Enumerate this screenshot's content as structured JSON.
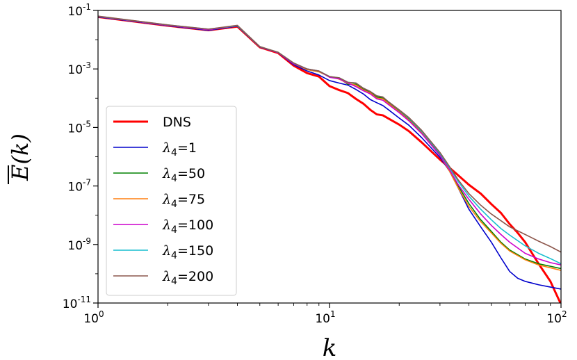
{
  "chart_data": {
    "type": "line",
    "xscale": "log",
    "yscale": "log",
    "xlabel": "k",
    "ylabel": "E(k)",
    "xlim": [
      1,
      100
    ],
    "ylim": [
      1e-11,
      0.1
    ],
    "x_ticks": [
      {
        "base": "10",
        "exp": "0",
        "value": 1
      },
      {
        "base": "10",
        "exp": "1",
        "value": 10
      },
      {
        "base": "10",
        "exp": "2",
        "value": 100
      }
    ],
    "y_ticks": [
      {
        "base": "10",
        "exp": "-1",
        "value": 0.1
      },
      {
        "base": "10",
        "exp": "-3",
        "value": 0.001
      },
      {
        "base": "10",
        "exp": "-5",
        "value": 1e-05
      },
      {
        "base": "10",
        "exp": "-7",
        "value": 1e-07
      },
      {
        "base": "10",
        "exp": "-9",
        "value": 1e-09
      },
      {
        "base": "10",
        "exp": "-11",
        "value": 1e-11
      }
    ],
    "legend_position": "center-left",
    "series": [
      {
        "name": "DNS",
        "label_prefix": "",
        "label_value": "DNS",
        "color": "#ff0000",
        "width": 3,
        "points": [
          [
            1,
            0.06
          ],
          [
            2,
            0.03
          ],
          [
            3,
            0.021
          ],
          [
            4,
            0.028
          ],
          [
            5,
            0.0055
          ],
          [
            6,
            0.0035
          ],
          [
            7,
            0.0013
          ],
          [
            8,
            0.00072
          ],
          [
            9,
            0.00055
          ],
          [
            10,
            0.00026
          ],
          [
            11,
            0.00019
          ],
          [
            12,
            0.00015
          ],
          [
            13,
            9.5e-05
          ],
          [
            14,
            6.5e-05
          ],
          [
            15,
            4e-05
          ],
          [
            16,
            2.8e-05
          ],
          [
            17,
            2.6e-05
          ],
          [
            18,
            2e-05
          ],
          [
            20,
            1.25e-05
          ],
          [
            22,
            7.5e-06
          ],
          [
            25,
            3.1e-06
          ],
          [
            30,
            8e-07
          ],
          [
            35,
            2.8e-07
          ],
          [
            40,
            1.1e-07
          ],
          [
            45,
            5.5e-08
          ],
          [
            50,
            2.4e-08
          ],
          [
            55,
            1.2e-08
          ],
          [
            60,
            5e-09
          ],
          [
            65,
            2.5e-09
          ],
          [
            70,
            1.2e-09
          ],
          [
            80,
            2.2e-10
          ],
          [
            90,
            5.5e-11
          ],
          [
            100,
            9e-12
          ]
        ]
      },
      {
        "name": "lambda4=1",
        "label_prefix": "λ",
        "label_sub": "4",
        "label_value": "=1",
        "color": "#0000cc",
        "width": 1.6,
        "points": [
          [
            1,
            0.06
          ],
          [
            2,
            0.03
          ],
          [
            3,
            0.021
          ],
          [
            4,
            0.029
          ],
          [
            5,
            0.0056
          ],
          [
            6,
            0.0036
          ],
          [
            7,
            0.0014
          ],
          [
            8,
            0.00085
          ],
          [
            9,
            0.00062
          ],
          [
            10,
            0.0004
          ],
          [
            11,
            0.00033
          ],
          [
            12,
            0.00028
          ],
          [
            13,
            0.0002
          ],
          [
            14,
            0.00014
          ],
          [
            15,
            9e-05
          ],
          [
            16,
            7e-05
          ],
          [
            17,
            5.6e-05
          ],
          [
            18,
            4e-05
          ],
          [
            20,
            2.1e-05
          ],
          [
            22,
            1.2e-05
          ],
          [
            25,
            4.5e-06
          ],
          [
            30,
            9.5e-07
          ],
          [
            33,
            3.2e-07
          ],
          [
            36,
            8.5e-08
          ],
          [
            40,
            1.6e-08
          ],
          [
            45,
            4e-09
          ],
          [
            50,
            1.2e-09
          ],
          [
            55,
            3.5e-10
          ],
          [
            60,
            1.2e-10
          ],
          [
            65,
            7e-11
          ],
          [
            70,
            5.5e-11
          ],
          [
            80,
            4.2e-11
          ],
          [
            90,
            3.5e-11
          ],
          [
            100,
            3e-11
          ]
        ]
      },
      {
        "name": "lambda4=50",
        "label_prefix": "λ",
        "label_sub": "4",
        "label_value": "=50",
        "color": "#008000",
        "width": 1.6,
        "points": [
          [
            1,
            0.062
          ],
          [
            2,
            0.031
          ],
          [
            3,
            0.022
          ],
          [
            4,
            0.03
          ],
          [
            5,
            0.0057
          ],
          [
            6,
            0.0037
          ],
          [
            7,
            0.0015
          ],
          [
            8,
            0.00095
          ],
          [
            9,
            0.0008
          ],
          [
            10,
            0.00055
          ],
          [
            11,
            0.00048
          ],
          [
            12,
            0.0003
          ],
          [
            13,
            0.0003
          ],
          [
            14,
            0.0002
          ],
          [
            15,
            0.00016
          ],
          [
            16,
            0.00011
          ],
          [
            17,
            0.0001
          ],
          [
            18,
            7e-05
          ],
          [
            20,
            3.7e-05
          ],
          [
            22,
            2e-05
          ],
          [
            25,
            7e-06
          ],
          [
            30,
            1.2e-06
          ],
          [
            33,
            3.5e-07
          ],
          [
            36,
            1e-07
          ],
          [
            40,
            2.5e-08
          ],
          [
            45,
            7e-09
          ],
          [
            50,
            2.8e-09
          ],
          [
            55,
            1.2e-09
          ],
          [
            60,
            6.5e-10
          ],
          [
            70,
            3.2e-10
          ],
          [
            80,
            2.2e-10
          ],
          [
            90,
            1.8e-10
          ],
          [
            100,
            1.5e-10
          ]
        ]
      },
      {
        "name": "lambda4=75",
        "label_prefix": "λ",
        "label_sub": "4",
        "label_value": "=75",
        "color": "#ff7f0e",
        "width": 1.6,
        "points": [
          [
            1,
            0.062
          ],
          [
            2,
            0.031
          ],
          [
            3,
            0.022
          ],
          [
            4,
            0.03
          ],
          [
            5,
            0.0057
          ],
          [
            6,
            0.0037
          ],
          [
            7,
            0.0015
          ],
          [
            8,
            0.00095
          ],
          [
            9,
            0.0008
          ],
          [
            10,
            0.00055
          ],
          [
            11,
            0.00045
          ],
          [
            12,
            0.00032
          ],
          [
            13,
            0.00028
          ],
          [
            14,
            0.00019
          ],
          [
            15,
            0.00015
          ],
          [
            16,
            0.0001
          ],
          [
            17,
            9.5e-05
          ],
          [
            18,
            6.5e-05
          ],
          [
            20,
            3.4e-05
          ],
          [
            22,
            1.8e-05
          ],
          [
            25,
            6.5e-06
          ],
          [
            30,
            1.1e-06
          ],
          [
            33,
            3.2e-07
          ],
          [
            36,
            8.5e-08
          ],
          [
            40,
            2e-08
          ],
          [
            45,
            6e-09
          ],
          [
            50,
            2.5e-09
          ],
          [
            55,
            1.1e-09
          ],
          [
            60,
            6e-10
          ],
          [
            70,
            3e-10
          ],
          [
            80,
            2e-10
          ],
          [
            90,
            1.6e-10
          ],
          [
            100,
            1.3e-10
          ]
        ]
      },
      {
        "name": "lambda4=100",
        "label_prefix": "λ",
        "label_sub": "4",
        "label_value": "=100",
        "color": "#cc00cc",
        "width": 1.6,
        "points": [
          [
            1,
            0.062
          ],
          [
            2,
            0.031
          ],
          [
            3,
            0.022
          ],
          [
            4,
            0.03
          ],
          [
            5,
            0.0057
          ],
          [
            6,
            0.0036
          ],
          [
            7,
            0.0015
          ],
          [
            8,
            0.001
          ],
          [
            9,
            0.00085
          ],
          [
            10,
            0.00052
          ],
          [
            11,
            0.00046
          ],
          [
            12,
            0.00033
          ],
          [
            13,
            0.00025
          ],
          [
            14,
            0.00018
          ],
          [
            15,
            0.00014
          ],
          [
            16,
            9.5e-05
          ],
          [
            17,
            8.5e-05
          ],
          [
            18,
            6e-05
          ],
          [
            20,
            3.2e-05
          ],
          [
            22,
            1.7e-05
          ],
          [
            25,
            6.2e-06
          ],
          [
            30,
            1.1e-06
          ],
          [
            33,
            3.6e-07
          ],
          [
            36,
            1.1e-07
          ],
          [
            40,
            3.5e-08
          ],
          [
            45,
            1.1e-08
          ],
          [
            50,
            4.5e-09
          ],
          [
            55,
            2.2e-09
          ],
          [
            60,
            1.2e-09
          ],
          [
            70,
            5e-10
          ],
          [
            80,
            3.2e-10
          ],
          [
            90,
            2.4e-10
          ],
          [
            100,
            2e-10
          ]
        ]
      },
      {
        "name": "lambda4=150",
        "label_prefix": "λ",
        "label_sub": "4",
        "label_value": "=150",
        "color": "#17becf",
        "width": 1.6,
        "points": [
          [
            1,
            0.063
          ],
          [
            2,
            0.032
          ],
          [
            3,
            0.023
          ],
          [
            4,
            0.03
          ],
          [
            5,
            0.0058
          ],
          [
            6,
            0.0037
          ],
          [
            7,
            0.0016
          ],
          [
            8,
            0.001
          ],
          [
            9,
            0.00085
          ],
          [
            10,
            0.00055
          ],
          [
            11,
            0.0005
          ],
          [
            12,
            0.00035
          ],
          [
            13,
            0.00033
          ],
          [
            14,
            0.00022
          ],
          [
            15,
            0.00017
          ],
          [
            16,
            0.00012
          ],
          [
            17,
            0.00011
          ],
          [
            18,
            7.5e-05
          ],
          [
            20,
            3.9e-05
          ],
          [
            22,
            2.1e-05
          ],
          [
            25,
            7.5e-06
          ],
          [
            30,
            1.3e-06
          ],
          [
            33,
            4.2e-07
          ],
          [
            36,
            1.4e-07
          ],
          [
            40,
            4.5e-08
          ],
          [
            45,
            1.6e-08
          ],
          [
            50,
            7e-09
          ],
          [
            55,
            3.5e-09
          ],
          [
            60,
            2.1e-09
          ],
          [
            70,
            9e-10
          ],
          [
            80,
            5e-10
          ],
          [
            90,
            3.3e-10
          ],
          [
            100,
            2.2e-10
          ]
        ]
      },
      {
        "name": "lambda4=200",
        "label_prefix": "λ",
        "label_sub": "4",
        "label_value": "=200",
        "color": "#8c564b",
        "width": 1.6,
        "points": [
          [
            1,
            0.064
          ],
          [
            2,
            0.032
          ],
          [
            3,
            0.023
          ],
          [
            4,
            0.031
          ],
          [
            5,
            0.0058
          ],
          [
            6,
            0.0037
          ],
          [
            7,
            0.0016
          ],
          [
            8,
            0.001
          ],
          [
            9,
            0.00085
          ],
          [
            10,
            0.00055
          ],
          [
            11,
            0.0005
          ],
          [
            12,
            0.00035
          ],
          [
            13,
            0.00033
          ],
          [
            14,
            0.00022
          ],
          [
            15,
            0.00017
          ],
          [
            16,
            0.00012
          ],
          [
            17,
            0.00011
          ],
          [
            18,
            7.5e-05
          ],
          [
            20,
            4e-05
          ],
          [
            22,
            2.2e-05
          ],
          [
            25,
            8e-06
          ],
          [
            30,
            1.4e-06
          ],
          [
            33,
            4.6e-07
          ],
          [
            36,
            1.6e-07
          ],
          [
            40,
            5.5e-08
          ],
          [
            45,
            2.2e-08
          ],
          [
            50,
            1.1e-08
          ],
          [
            55,
            6.5e-09
          ],
          [
            60,
            4e-09
          ],
          [
            70,
            2.2e-09
          ],
          [
            80,
            1.3e-09
          ],
          [
            90,
            8.5e-10
          ],
          [
            100,
            5.5e-10
          ]
        ]
      }
    ]
  }
}
